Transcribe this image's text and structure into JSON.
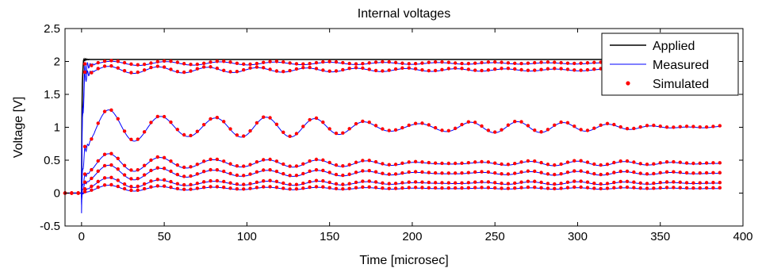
{
  "chart_data": {
    "type": "line",
    "title": "Internal voltages",
    "xlabel": "Time [microsec]",
    "ylabel": "Voltage [V]",
    "xlim": [
      -10,
      400
    ],
    "ylim": [
      -0.5,
      2.5
    ],
    "x_ticks": [
      0,
      50,
      100,
      150,
      200,
      250,
      300,
      350,
      400
    ],
    "y_ticks": [
      -0.5,
      0,
      0.5,
      1,
      1.5,
      2,
      2.5
    ],
    "x_tick_labels": [
      "0",
      "50",
      "100",
      "150",
      "200",
      "250",
      "300",
      "350",
      "400"
    ],
    "y_tick_labels": [
      "-0.5",
      "0",
      "0.5",
      "1",
      "1.5",
      "2",
      "2.5"
    ],
    "grid": false,
    "legend": {
      "position": "top-right",
      "entries": [
        {
          "label": "Applied",
          "style": "line",
          "color": "#000000"
        },
        {
          "label": "Measured",
          "style": "line",
          "color": "#0000ff"
        },
        {
          "label": "Simulated",
          "style": "dots",
          "color": "#ff0000"
        }
      ]
    },
    "x_end": 387,
    "series": [
      {
        "name": "Applied",
        "color": "#000000",
        "kind": "applied",
        "final": 2.03
      },
      {
        "name": "Measured",
        "color": "#0000ff",
        "kind": "measured"
      },
      {
        "name": "Simulated",
        "color": "#ff0000",
        "kind": "simulated",
        "dot_spacing": 4
      }
    ],
    "traces": [
      {
        "final": 1.97,
        "amplitude": 0.035,
        "period": 33,
        "decay": 220
      },
      {
        "final": 1.87,
        "amplitude": 0.06,
        "period": 30,
        "decay": 200
      },
      {
        "final": 1.0,
        "amplitude": 0.32,
        "period": 31,
        "decay": 110,
        "mod_amplitude": 0.06,
        "mod_period": 27
      },
      {
        "final": 0.45,
        "amplitude": 0.18,
        "period": 31,
        "decay": 100,
        "mod_amplitude": 0.03,
        "mod_period": 28
      },
      {
        "final": 0.3,
        "amplitude": 0.15,
        "period": 31,
        "decay": 100,
        "mod_amplitude": 0.025,
        "mod_period": 28
      },
      {
        "final": 0.15,
        "amplitude": 0.1,
        "period": 31,
        "decay": 100,
        "mod_amplitude": 0.02,
        "mod_period": 28
      },
      {
        "final": 0.07,
        "amplitude": 0.06,
        "period": 31,
        "decay": 100,
        "mod_amplitude": 0.01,
        "mod_period": 28
      }
    ]
  }
}
